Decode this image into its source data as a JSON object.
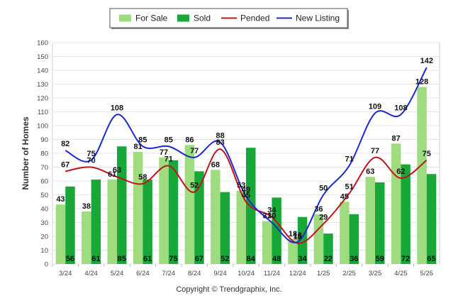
{
  "chart_data": {
    "type": "bar",
    "ylabel": "Number of Homes",
    "ylim": [
      0,
      160
    ],
    "yticks": [
      0,
      10,
      20,
      30,
      40,
      50,
      60,
      70,
      80,
      90,
      100,
      110,
      120,
      130,
      140,
      150,
      160
    ],
    "grid": true,
    "legend_position": "top-center",
    "categories": [
      "3/24",
      "4/24",
      "5/24",
      "6/24",
      "7/24",
      "8/24",
      "9/24",
      "10/24",
      "11/24",
      "12/24",
      "1/25",
      "2/25",
      "3/25",
      "4/25",
      "5/25"
    ],
    "series": [
      {
        "name": "For Sale",
        "kind": "bar",
        "color": "#9fdc7f",
        "values": [
          43,
          38,
          61,
          81,
          77,
          86,
          68,
          53,
          31,
          18,
          36,
          45,
          63,
          87,
          128
        ]
      },
      {
        "name": "Sold",
        "kind": "bar",
        "color": "#18a83a",
        "values": [
          56,
          61,
          85,
          61,
          75,
          67,
          52,
          84,
          48,
          34,
          22,
          36,
          59,
          72,
          65
        ]
      },
      {
        "name": "Pended",
        "kind": "line",
        "color": "#c0141b",
        "values": [
          67,
          70,
          63,
          58,
          71,
          52,
          83,
          45,
          34,
          15,
          29,
          51,
          77,
          62,
          75
        ]
      },
      {
        "name": "New Listing",
        "kind": "line",
        "color": "#1c28d0",
        "values": [
          82,
          75,
          108,
          85,
          85,
          77,
          88,
          49,
          30,
          16,
          50,
          71,
          109,
          108,
          142
        ]
      }
    ]
  },
  "copyright": "Copyright © Trendgraphix, Inc."
}
